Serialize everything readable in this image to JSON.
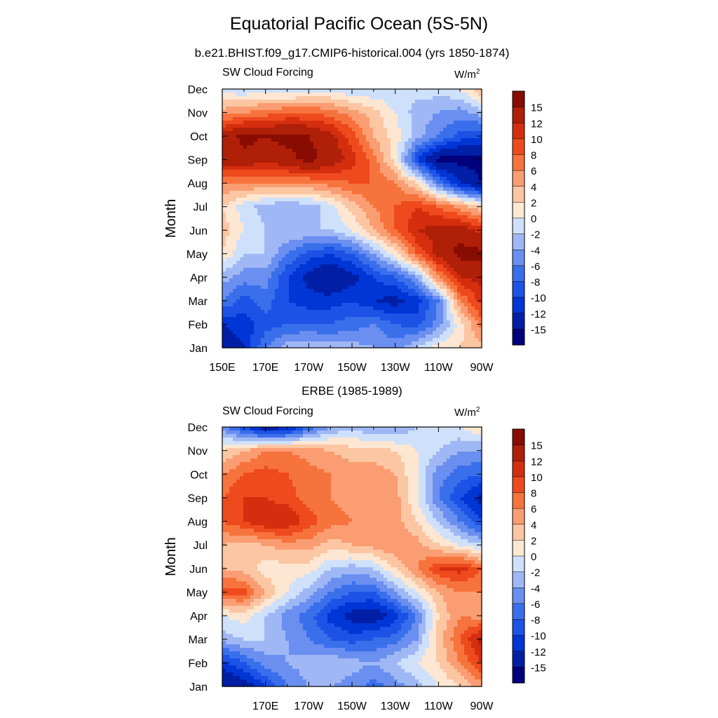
{
  "figure": {
    "title": "Equatorial Pacific Ocean (5S-5N)"
  },
  "chart_data": [
    {
      "type": "heatmap",
      "subtitle": "b.e21.BHIST.f09_g17.CMIP6-historical.004 (yrs 1850-1874)",
      "left_label": "SW Cloud Forcing",
      "right_label": "W/m",
      "right_label_sup": "2",
      "ylabel": "Month",
      "xlabel": "",
      "x_ticks": [
        "150E",
        "170E",
        "170W",
        "150W",
        "130W",
        "110W",
        "90W"
      ],
      "y_ticks": [
        "Jan",
        "Feb",
        "Mar",
        "Apr",
        "May",
        "Jun",
        "Jul",
        "Aug",
        "Sep",
        "Oct",
        "Nov",
        "Dec"
      ],
      "xlim": [
        150,
        270
      ],
      "x_units": "degrees east",
      "ylim": [
        1,
        12
      ],
      "cols": [
        150,
        160,
        170,
        180,
        190,
        200,
        210,
        220,
        230,
        240,
        250,
        260,
        270
      ],
      "rows": [
        1,
        2,
        3,
        4,
        5,
        6,
        7,
        8,
        9,
        10,
        11,
        12
      ],
      "values": [
        [
          -14,
          -12,
          -6,
          -3,
          -2,
          -3,
          -3,
          -4,
          -5,
          -2,
          1,
          2,
          3
        ],
        [
          -12,
          -11,
          -9,
          -8,
          -8,
          -8,
          -7,
          -6,
          -8,
          -9,
          -5,
          1,
          7
        ],
        [
          -6,
          -9,
          -7,
          -10,
          -11,
          -11,
          -10,
          -12,
          -13,
          -11,
          -6,
          6,
          11
        ],
        [
          -3,
          -5,
          -5,
          -10,
          -13,
          -15,
          -13,
          -10,
          -8,
          -4,
          6,
          12,
          13
        ],
        [
          2,
          -2,
          -2,
          -6,
          -9,
          -10,
          -8,
          -4,
          1,
          8,
          13,
          16,
          16
        ],
        [
          3,
          0,
          -2,
          -2,
          -2,
          -2,
          0,
          4,
          8,
          12,
          13,
          14,
          11
        ],
        [
          2,
          -1,
          -3,
          -4,
          -3,
          -1,
          3,
          6,
          8,
          10,
          8,
          5,
          2
        ],
        [
          6,
          6,
          6,
          6,
          6,
          7,
          8,
          8,
          6,
          2,
          -6,
          -12,
          -15
        ],
        [
          14,
          14,
          13,
          14,
          16,
          14,
          11,
          7,
          1,
          -10,
          -16,
          -16,
          -16
        ],
        [
          13,
          16,
          15,
          16,
          15,
          13,
          9,
          4,
          1,
          -3,
          -6,
          -9,
          -10
        ],
        [
          5,
          6,
          7,
          8,
          8,
          7,
          5,
          3,
          0,
          -3,
          -4,
          -5,
          -3
        ],
        [
          -1,
          -2,
          -1,
          -2,
          -1,
          -1,
          -2,
          -2,
          -2,
          -1,
          -1,
          0,
          4
        ]
      ]
    },
    {
      "type": "heatmap",
      "subtitle": "ERBE (1985-1989)",
      "left_label": "SW Cloud Forcing",
      "right_label": "W/m",
      "right_label_sup": "2",
      "ylabel": "Month",
      "xlabel": "",
      "x_ticks": [
        "170E",
        "170W",
        "150W",
        "130W",
        "110W",
        "90W"
      ],
      "y_ticks": [
        "Jan",
        "Feb",
        "Mar",
        "Apr",
        "May",
        "Jun",
        "Jul",
        "Aug",
        "Sep",
        "Oct",
        "Nov",
        "Dec"
      ],
      "xlim": [
        150,
        270
      ],
      "x_units": "degrees east",
      "ylim": [
        1,
        12
      ],
      "cols": [
        150,
        160,
        170,
        180,
        190,
        200,
        210,
        220,
        230,
        240,
        250,
        260,
        270
      ],
      "rows": [
        1,
        2,
        3,
        4,
        5,
        6,
        7,
        8,
        9,
        10,
        11,
        12
      ],
      "values": [
        [
          -15,
          -14,
          -10,
          -6,
          -4,
          -4,
          -5,
          -7,
          -5,
          -3,
          0,
          2,
          5
        ],
        [
          -11,
          -8,
          -5,
          -4,
          -3,
          -2,
          -3,
          -4,
          -2,
          0,
          2,
          6,
          10
        ],
        [
          -3,
          -2,
          -2,
          -4,
          -6,
          -8,
          -9,
          -8,
          -7,
          -4,
          3,
          8,
          13
        ],
        [
          0,
          1,
          -2,
          -5,
          -7,
          -11,
          -13,
          -14,
          -11,
          -6,
          2,
          6,
          5
        ],
        [
          9,
          9,
          4,
          0,
          -3,
          -6,
          -8,
          -8,
          -4,
          0,
          4,
          6,
          6
        ],
        [
          4,
          3,
          1,
          1,
          1,
          -2,
          -3,
          -2,
          2,
          6,
          10,
          11,
          8
        ],
        [
          4,
          3,
          4,
          5,
          5,
          3,
          4,
          5,
          6,
          5,
          2,
          0,
          -2
        ],
        [
          8,
          10,
          12,
          12,
          9,
          7,
          6,
          5,
          5,
          2,
          -2,
          -6,
          -10
        ],
        [
          8,
          10,
          10,
          9,
          7,
          6,
          5,
          6,
          5,
          0,
          -6,
          -10,
          -13
        ],
        [
          6,
          8,
          9,
          8,
          7,
          6,
          5,
          5,
          4,
          0,
          -5,
          -7,
          -8
        ],
        [
          2,
          4,
          6,
          6,
          5,
          4,
          3,
          3,
          2,
          0,
          -2,
          -4,
          -4
        ],
        [
          -5,
          -10,
          -14,
          -13,
          -8,
          -4,
          -3,
          -4,
          -4,
          -2,
          0,
          0,
          2
        ]
      ]
    }
  ],
  "colorbar": {
    "labels": [
      "15",
      "12",
      "10",
      "8",
      "6",
      "4",
      "2",
      "0",
      "-2",
      "-4",
      "-6",
      "-8",
      "-10",
      "-12",
      "-15"
    ],
    "levels": [
      -15,
      -12,
      -10,
      -8,
      -6,
      -4,
      -2,
      0,
      2,
      4,
      6,
      8,
      10,
      12,
      15
    ],
    "colors": [
      "#00007c",
      "#001fa6",
      "#0035d6",
      "#1c53e6",
      "#3a6fec",
      "#6a8ff0",
      "#9fb8f5",
      "#cfe0fb",
      "#fde7d3",
      "#fcc6a3",
      "#fb9d72",
      "#f7733d",
      "#ee4a1e",
      "#d42e0f",
      "#b01f07",
      "#880c02"
    ]
  }
}
